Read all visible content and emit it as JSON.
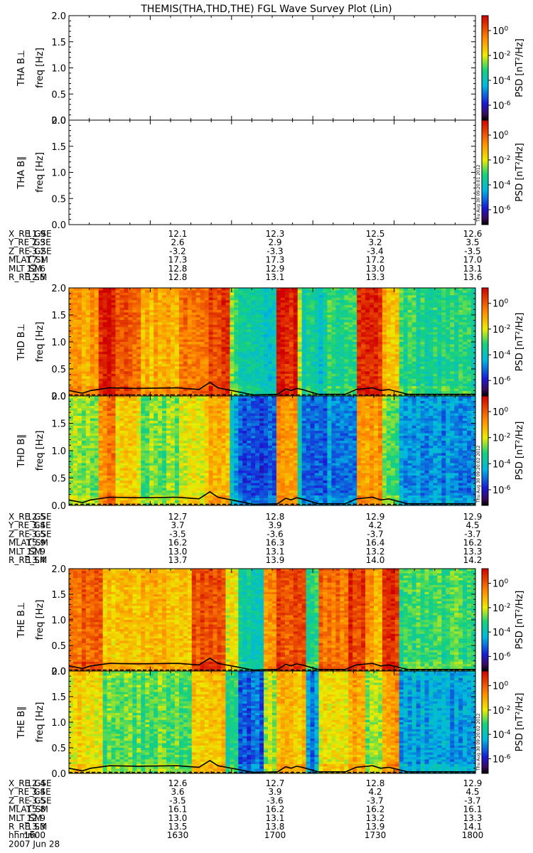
{
  "title": "THEMIS(THA,THD,THE) FGL Wave Survey Plot (Lin)",
  "colorbar": {
    "label": "PSD [nT²/Hz]",
    "ticks": [
      {
        "base": "10",
        "exp": "0",
        "frac": 0.857
      },
      {
        "base": "10",
        "exp": "-2",
        "frac": 0.619
      },
      {
        "base": "10",
        "exp": "-4",
        "frac": 0.381
      },
      {
        "base": "10",
        "exp": "-6",
        "frac": 0.143
      }
    ]
  },
  "freq_axis": {
    "label": "freq [Hz]",
    "ticks": [
      "0.0",
      "0.5",
      "1.0",
      "1.5",
      "2.0"
    ],
    "ylim": [
      0,
      2.0
    ]
  },
  "time_axis": {
    "labels": [
      "1600",
      "1630",
      "1700",
      "1730",
      "1800"
    ]
  },
  "probes": [
    {
      "name": "THA",
      "panels": [
        {
          "label": "THA B⊥",
          "has_data": false
        },
        {
          "label": "THA B∥",
          "has_data": false,
          "stamp": "Thu Aug 30 09:20:01 2012"
        }
      ],
      "ephemeris": [
        {
          "name": "X_RE_GSE",
          "values": [
            "11.9",
            "12.1",
            "12.3",
            "12.5",
            "12.6"
          ]
        },
        {
          "name": "Y_RE_GSE",
          "values": [
            "2.3",
            "2.6",
            "2.9",
            "3.2",
            "3.5"
          ]
        },
        {
          "name": "Z_RE_GSE",
          "values": [
            "-3.2",
            "-3.2",
            "-3.3",
            "-3.4",
            "-3.5"
          ]
        },
        {
          "name": "MLAT_SM",
          "values": [
            "17.1",
            "17.3",
            "17.3",
            "17.2",
            "17.0"
          ]
        },
        {
          "name": "MLT_SM",
          "values": [
            "12.6",
            "12.8",
            "12.9",
            "13.0",
            "13.1"
          ]
        },
        {
          "name": "R_RE_SM",
          "values": [
            "12.5",
            "12.8",
            "13.1",
            "13.3",
            "13.6"
          ]
        }
      ]
    },
    {
      "name": "THD",
      "panels": [
        {
          "label": "THD B⊥",
          "has_data": true
        },
        {
          "label": "THD B∥",
          "has_data": true,
          "stamp": "Thu Aug 30 09:20:02 2012"
        }
      ],
      "ephemeris": [
        {
          "name": "X_RE_GSE",
          "values": [
            "12.5",
            "12.7",
            "12.8",
            "12.9",
            "12.9"
          ]
        },
        {
          "name": "Y_RE_GSE",
          "values": [
            "3.4",
            "3.7",
            "3.9",
            "4.2",
            "4.5"
          ]
        },
        {
          "name": "Z_RE_GSE",
          "values": [
            "-3.5",
            "-3.5",
            "-3.6",
            "-3.7",
            "-3.7"
          ]
        },
        {
          "name": "MLAT_SM",
          "values": [
            "15.9",
            "16.2",
            "16.3",
            "16.4",
            "16.2"
          ]
        },
        {
          "name": "MLT_SM",
          "values": [
            "12.9",
            "13.0",
            "13.1",
            "13.2",
            "13.3"
          ]
        },
        {
          "name": "R_RE_SM",
          "values": [
            "13.4",
            "13.7",
            "13.9",
            "14.0",
            "14.2"
          ]
        }
      ]
    },
    {
      "name": "THE",
      "panels": [
        {
          "label": "THE B⊥",
          "has_data": true
        },
        {
          "label": "THE B∥",
          "has_data": true,
          "stamp": "Thu Aug 30 09:20:02 2012"
        }
      ],
      "ephemeris": [
        {
          "name": "X_RE_GSE",
          "values": [
            "12.4",
            "12.6",
            "12.7",
            "12.8",
            "12.9"
          ]
        },
        {
          "name": "Y_RE_GSE",
          "values": [
            "3.4",
            "3.6",
            "3.9",
            "4.2",
            "4.5"
          ]
        },
        {
          "name": "Z_RE_GSE",
          "values": [
            "-3.5",
            "-3.5",
            "-3.6",
            "-3.7",
            "-3.7"
          ]
        },
        {
          "name": "MLAT_SM",
          "values": [
            "15.8",
            "16.1",
            "16.2",
            "16.2",
            "16.1"
          ]
        },
        {
          "name": "MLT_SM",
          "values": [
            "12.9",
            "13.0",
            "13.1",
            "13.2",
            "13.3"
          ]
        },
        {
          "name": "R_RE_SM",
          "values": [
            "13.3",
            "13.5",
            "13.8",
            "13.9",
            "14.1"
          ]
        }
      ]
    }
  ],
  "time_row": {
    "name": "hhmm",
    "values": [
      "1600",
      "1630",
      "1700",
      "1730",
      "1800"
    ]
  },
  "date": "2007 Jun 28",
  "chart_data": {
    "type": "heatmap",
    "title": "THEMIS(THA,THD,THE) FGL Wave Survey Plot (Lin)",
    "x": [
      "1600",
      "1630",
      "1700",
      "1730",
      "1800"
    ],
    "ylim": [
      0,
      2.0
    ],
    "zlabel": "PSD [nT²/Hz]",
    "zlim_log10": [
      -7,
      1.5
    ],
    "bands": {
      "THD": [
        {
          "from": 0.0,
          "to": 0.11,
          "level": 0.72
        },
        {
          "from": 0.11,
          "to": 0.17,
          "level": 0.95
        },
        {
          "from": 0.17,
          "to": 0.27,
          "level": 0.82
        },
        {
          "from": 0.27,
          "to": 0.4,
          "level": 0.7
        },
        {
          "from": 0.4,
          "to": 0.52,
          "level": 0.8
        },
        {
          "from": 0.52,
          "to": 0.6,
          "level": 0.88
        },
        {
          "from": 0.6,
          "to": 0.63,
          "level": 0.5
        },
        {
          "from": 0.63,
          "to": 0.68,
          "level": 0.4
        },
        {
          "from": 0.68,
          "to": 0.77,
          "level": 0.38
        },
        {
          "from": 0.77,
          "to": 0.84,
          "level": 0.93
        },
        {
          "from": 0.84,
          "to": 0.86,
          "level": 0.55
        },
        {
          "from": 0.86,
          "to": 0.91,
          "level": 0.4
        },
        {
          "from": 0.91,
          "to": 0.95,
          "level": 0.38
        },
        {
          "from": 0.95,
          "to": 1.07,
          "level": 0.45
        },
        {
          "from": 1.07,
          "to": 1.15,
          "level": 0.92
        },
        {
          "from": 1.15,
          "to": 1.22,
          "level": 0.68
        },
        {
          "from": 1.22,
          "to": 1.5,
          "level": 0.45
        }
      ],
      "THE": [
        {
          "from": 0.0,
          "to": 0.12,
          "level": 0.82
        },
        {
          "from": 0.12,
          "to": 0.45,
          "level": 0.68
        },
        {
          "from": 0.45,
          "to": 0.58,
          "level": 0.86
        },
        {
          "from": 0.58,
          "to": 0.62,
          "level": 0.62
        },
        {
          "from": 0.62,
          "to": 0.72,
          "level": 0.4
        },
        {
          "from": 0.72,
          "to": 0.76,
          "level": 0.75
        },
        {
          "from": 0.76,
          "to": 0.87,
          "level": 0.86
        },
        {
          "from": 0.87,
          "to": 0.92,
          "level": 0.45
        },
        {
          "from": 0.92,
          "to": 1.03,
          "level": 0.8
        },
        {
          "from": 1.03,
          "to": 1.1,
          "level": 0.9
        },
        {
          "from": 1.1,
          "to": 1.16,
          "level": 0.72
        },
        {
          "from": 1.16,
          "to": 1.22,
          "level": 0.92
        },
        {
          "from": 1.22,
          "to": 1.5,
          "level": 0.48
        }
      ]
    },
    "freq_line_hz": {
      "x": [
        0.0,
        0.05,
        0.08,
        0.15,
        0.25,
        0.4,
        0.48,
        0.52,
        0.55,
        0.58,
        0.62,
        0.68,
        0.77,
        0.8,
        0.82,
        0.84,
        0.86,
        0.92,
        1.02,
        1.06,
        1.12,
        1.15,
        1.18,
        1.25,
        1.5
      ],
      "y": [
        0.1,
        0.05,
        0.1,
        0.15,
        0.14,
        0.15,
        0.12,
        0.25,
        0.15,
        0.12,
        0.08,
        0.02,
        0.03,
        0.13,
        0.1,
        0.14,
        0.12,
        0.03,
        0.03,
        0.12,
        0.15,
        0.1,
        0.12,
        0.03,
        0.03
      ]
    }
  }
}
